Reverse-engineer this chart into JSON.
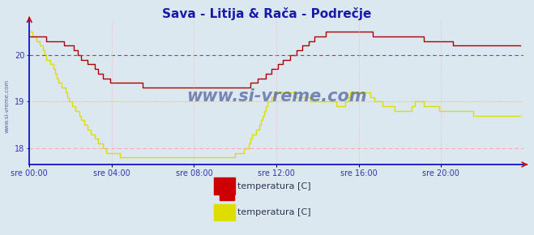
{
  "title": "Sava - Litija & Rača - Podrečje",
  "title_color": "#1a1aaa",
  "bg_color": "#dce8f0",
  "plot_bg_color": "#dce8f0",
  "grid_color": "#ffaaaa",
  "xlabel_color": "#3333aa",
  "ylabel_color": "#3333aa",
  "x_tick_labels": [
    "sre 00:00",
    "sre 04:00",
    "sre 08:00",
    "sre 12:00",
    "sre 16:00",
    "sre 20:00"
  ],
  "x_tick_positions": [
    0,
    48,
    96,
    144,
    192,
    240
  ],
  "yticks": [
    18,
    19,
    20
  ],
  "ylim": [
    17.65,
    20.75
  ],
  "xlim": [
    0,
    288
  ],
  "legend_labels": [
    "temperatura [C]",
    "temperatura [C]"
  ],
  "legend_colors": [
    "#cc0000",
    "#dddd00"
  ],
  "watermark": "www.si-vreme.com",
  "watermark_color": "#334488",
  "series1_color": "#aa0000",
  "series2_color": "#dddd00",
  "hline1_value": 20.0,
  "hline1_color": "#cc2222",
  "hline2_value": 19.0,
  "hline2_color": "#dddd00",
  "hline3_value": 18.0,
  "hline3_color": "#ffaaaa",
  "axis_color": "#0000cc",
  "arrow_color": "#cc0000",
  "red_data": [
    20.4,
    20.4,
    20.4,
    20.4,
    20.4,
    20.4,
    20.4,
    20.4,
    20.4,
    20.4,
    20.3,
    20.3,
    20.3,
    20.3,
    20.3,
    20.3,
    20.3,
    20.3,
    20.3,
    20.3,
    20.2,
    20.2,
    20.2,
    20.2,
    20.2,
    20.2,
    20.1,
    20.1,
    20.0,
    20.0,
    19.9,
    19.9,
    19.9,
    19.9,
    19.8,
    19.8,
    19.8,
    19.8,
    19.7,
    19.7,
    19.6,
    19.6,
    19.6,
    19.5,
    19.5,
    19.5,
    19.5,
    19.4,
    19.4,
    19.4,
    19.4,
    19.4,
    19.4,
    19.4,
    19.4,
    19.4,
    19.4,
    19.4,
    19.4,
    19.4,
    19.4,
    19.4,
    19.4,
    19.4,
    19.4,
    19.4,
    19.3,
    19.3,
    19.3,
    19.3,
    19.3,
    19.3,
    19.3,
    19.3,
    19.3,
    19.3,
    19.3,
    19.3,
    19.3,
    19.3,
    19.3,
    19.3,
    19.3,
    19.3,
    19.3,
    19.3,
    19.3,
    19.3,
    19.3,
    19.3,
    19.3,
    19.3,
    19.3,
    19.3,
    19.3,
    19.3,
    19.3,
    19.3,
    19.3,
    19.3,
    19.3,
    19.3,
    19.3,
    19.3,
    19.3,
    19.3,
    19.3,
    19.3,
    19.3,
    19.3,
    19.3,
    19.3,
    19.3,
    19.3,
    19.3,
    19.3,
    19.3,
    19.3,
    19.3,
    19.3,
    19.3,
    19.3,
    19.3,
    19.3,
    19.3,
    19.3,
    19.3,
    19.3,
    19.3,
    19.4,
    19.4,
    19.4,
    19.4,
    19.5,
    19.5,
    19.5,
    19.5,
    19.5,
    19.6,
    19.6,
    19.6,
    19.7,
    19.7,
    19.7,
    19.7,
    19.8,
    19.8,
    19.8,
    19.9,
    19.9,
    19.9,
    19.9,
    20.0,
    20.0,
    20.0,
    20.0,
    20.1,
    20.1,
    20.1,
    20.2,
    20.2,
    20.2,
    20.2,
    20.3,
    20.3,
    20.3,
    20.4,
    20.4,
    20.4,
    20.4,
    20.4,
    20.4,
    20.4,
    20.5,
    20.5,
    20.5,
    20.5,
    20.5,
    20.5,
    20.5,
    20.5,
    20.5,
    20.5,
    20.5,
    20.5,
    20.5,
    20.5,
    20.5,
    20.5,
    20.5,
    20.5,
    20.5,
    20.5,
    20.5,
    20.5,
    20.5,
    20.5,
    20.5,
    20.5,
    20.5,
    20.4,
    20.4,
    20.4,
    20.4,
    20.4,
    20.4,
    20.4,
    20.4,
    20.4,
    20.4,
    20.4,
    20.4,
    20.4,
    20.4,
    20.4,
    20.4,
    20.4,
    20.4,
    20.4,
    20.4,
    20.4,
    20.4,
    20.4,
    20.4,
    20.4,
    20.4,
    20.4,
    20.4,
    20.4,
    20.4,
    20.3,
    20.3,
    20.3,
    20.3,
    20.3,
    20.3,
    20.3,
    20.3,
    20.3,
    20.3,
    20.3,
    20.3,
    20.3,
    20.3,
    20.3,
    20.3,
    20.3,
    20.2,
    20.2,
    20.2,
    20.2,
    20.2,
    20.2,
    20.2,
    20.2,
    20.2,
    20.2,
    20.2,
    20.2,
    20.2,
    20.2,
    20.2,
    20.2,
    20.2,
    20.2,
    20.2,
    20.2,
    20.2,
    20.2,
    20.2,
    20.2,
    20.2,
    20.2,
    20.2,
    20.2,
    20.2,
    20.2,
    20.2,
    20.2,
    20.2,
    20.2,
    20.2,
    20.2,
    20.2,
    20.2,
    20.2,
    20.2
  ],
  "yellow_data": [
    20.5,
    20.5,
    20.4,
    20.4,
    20.3,
    20.3,
    20.2,
    20.2,
    20.1,
    20.0,
    19.9,
    19.9,
    19.8,
    19.8,
    19.7,
    19.6,
    19.5,
    19.4,
    19.4,
    19.3,
    19.3,
    19.2,
    19.1,
    19.0,
    19.0,
    18.9,
    18.9,
    18.8,
    18.8,
    18.7,
    18.6,
    18.6,
    18.5,
    18.5,
    18.4,
    18.4,
    18.3,
    18.3,
    18.2,
    18.2,
    18.1,
    18.1,
    18.1,
    18.0,
    18.0,
    17.9,
    17.9,
    17.9,
    17.9,
    17.9,
    17.9,
    17.9,
    17.9,
    17.8,
    17.8,
    17.8,
    17.8,
    17.8,
    17.8,
    17.8,
    17.8,
    17.8,
    17.8,
    17.8,
    17.8,
    17.8,
    17.8,
    17.8,
    17.8,
    17.8,
    17.8,
    17.8,
    17.8,
    17.8,
    17.8,
    17.8,
    17.8,
    17.8,
    17.8,
    17.8,
    17.8,
    17.8,
    17.8,
    17.8,
    17.8,
    17.8,
    17.8,
    17.8,
    17.8,
    17.8,
    17.8,
    17.8,
    17.8,
    17.8,
    17.8,
    17.8,
    17.8,
    17.8,
    17.8,
    17.8,
    17.8,
    17.8,
    17.8,
    17.8,
    17.8,
    17.8,
    17.8,
    17.8,
    17.8,
    17.8,
    17.8,
    17.8,
    17.8,
    17.8,
    17.8,
    17.8,
    17.8,
    17.8,
    17.8,
    17.8,
    17.9,
    17.9,
    17.9,
    17.9,
    17.9,
    18.0,
    18.0,
    18.0,
    18.1,
    18.2,
    18.3,
    18.3,
    18.4,
    18.4,
    18.5,
    18.6,
    18.7,
    18.8,
    18.9,
    19.0,
    19.0,
    19.1,
    19.1,
    19.2,
    19.2,
    19.2,
    19.2,
    19.2,
    19.2,
    19.2,
    19.2,
    19.2,
    19.2,
    19.2,
    19.2,
    19.1,
    19.1,
    19.1,
    19.1,
    19.1,
    19.1,
    19.1,
    19.1,
    19.1,
    19.0,
    19.0,
    19.0,
    19.0,
    19.0,
    19.0,
    19.0,
    19.0,
    19.0,
    19.0,
    19.0,
    19.0,
    19.0,
    19.0,
    19.0,
    18.9,
    18.9,
    18.9,
    18.9,
    18.9,
    19.0,
    19.0,
    19.1,
    19.2,
    19.2,
    19.2,
    19.2,
    19.2,
    19.2,
    19.2,
    19.2,
    19.2,
    19.2,
    19.2,
    19.2,
    19.1,
    19.1,
    19.0,
    19.0,
    19.0,
    19.0,
    19.0,
    18.9,
    18.9,
    18.9,
    18.9,
    18.9,
    18.9,
    18.9,
    18.8,
    18.8,
    18.8,
    18.8,
    18.8,
    18.8,
    18.8,
    18.8,
    18.8,
    18.8,
    18.9,
    18.9,
    19.0,
    19.0,
    19.0,
    19.0,
    19.0,
    18.9,
    18.9,
    18.9,
    18.9,
    18.9,
    18.9,
    18.9,
    18.9,
    18.9,
    18.8,
    18.8,
    18.8,
    18.8,
    18.8,
    18.8,
    18.8,
    18.8,
    18.8,
    18.8,
    18.8,
    18.8,
    18.8,
    18.8,
    18.8,
    18.8,
    18.8,
    18.8,
    18.8,
    18.8,
    18.7,
    18.7,
    18.7,
    18.7,
    18.7,
    18.7,
    18.7,
    18.7,
    18.7,
    18.7,
    18.7,
    18.7,
    18.7,
    18.7,
    18.7,
    18.7,
    18.7,
    18.7,
    18.7,
    18.7,
    18.7,
    18.7,
    18.7,
    18.7,
    18.7,
    18.7,
    18.7,
    18.7
  ]
}
